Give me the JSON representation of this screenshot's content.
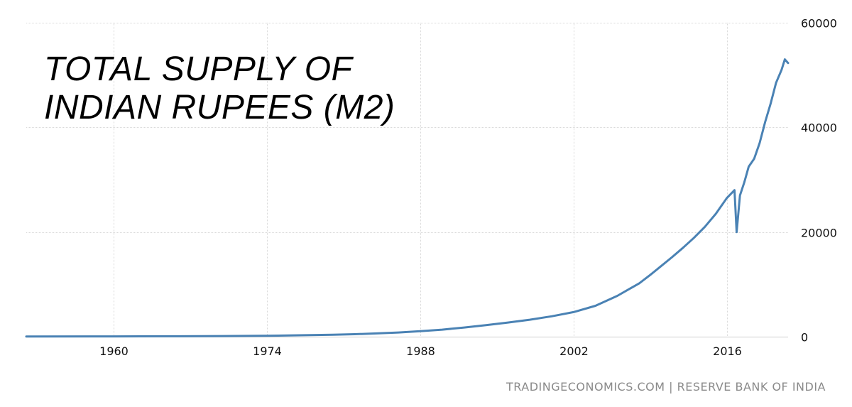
{
  "title_lines": [
    "TOTAL SUPPLY OF",
    "INDIAN RUPEES (M2)"
  ],
  "source": "TRADINGECONOMICS.COM | RESERVE BANK OF INDIA",
  "colors": {
    "line": "#4a82b4",
    "grid": "#d9d9d9",
    "axis": "#cfcfcf"
  },
  "chart_data": {
    "type": "line",
    "title": "TOTAL SUPPLY OF INDIAN RUPEES (M2)",
    "xlabel": "",
    "ylabel": "",
    "x_ticks": [
      1960,
      1974,
      1988,
      2002,
      2016
    ],
    "y_ticks": [
      0,
      20000,
      40000,
      60000
    ],
    "xlim": [
      1952,
      2021.6
    ],
    "ylim": [
      0,
      60000
    ],
    "grid": true,
    "legend": "none",
    "series": [
      {
        "x": [
          1952,
          1960,
          1965,
          1970,
          1975,
          1978,
          1980,
          1982,
          1984,
          1986,
          1988,
          1990,
          1992,
          1994,
          1996,
          1998,
          2000,
          2002,
          2004,
          2006,
          2008,
          2009,
          2010,
          2011,
          2012,
          2013,
          2014,
          2015,
          2016,
          2016.7,
          2016.9,
          2017.2,
          2017.6,
          2018,
          2018.5,
          2019,
          2019.5,
          2020,
          2020.5,
          2021,
          2021.3,
          2021.6
        ],
        "y": [
          30,
          60,
          80,
          120,
          200,
          300,
          380,
          480,
          620,
          800,
          1050,
          1350,
          1750,
          2200,
          2700,
          3250,
          3900,
          4700,
          5900,
          7800,
          10200,
          11800,
          13500,
          15200,
          17000,
          18900,
          21000,
          23500,
          26500,
          28000,
          20000,
          27000,
          29500,
          32500,
          34000,
          37000,
          41000,
          44500,
          48500,
          51000,
          53000,
          52300
        ]
      }
    ]
  }
}
